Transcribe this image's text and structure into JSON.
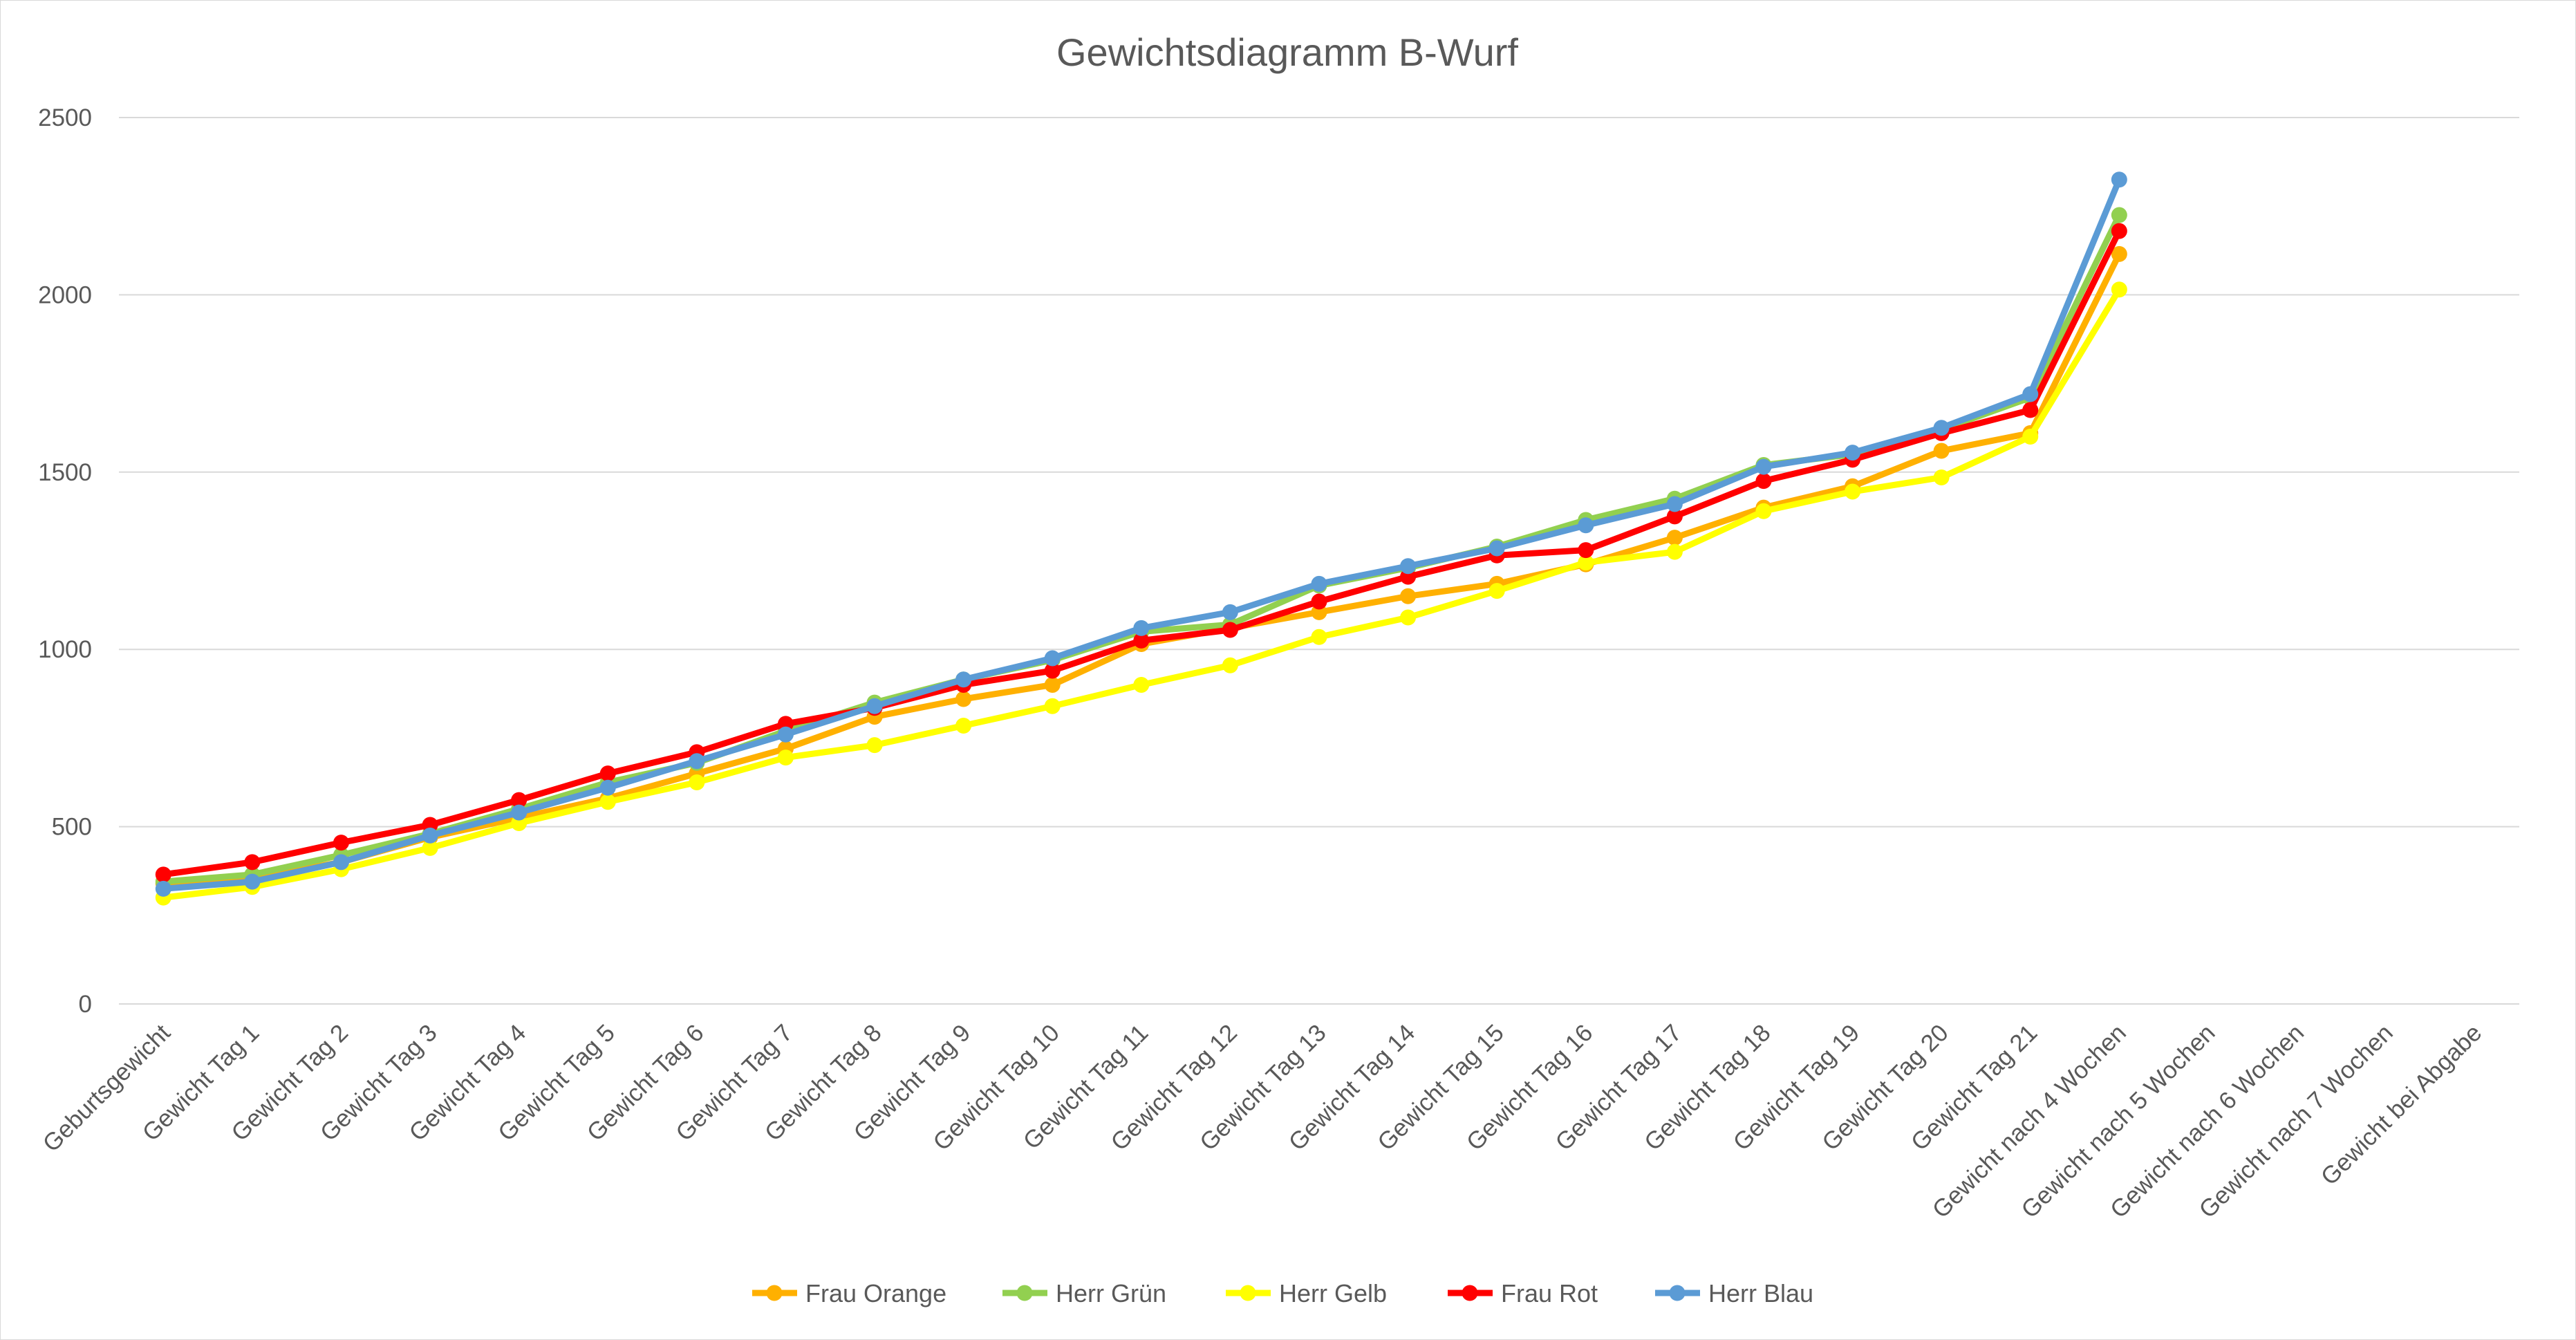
{
  "chart_data": {
    "type": "line",
    "title": "Gewichtsdiagramm B-Wurf",
    "xlabel": "",
    "ylabel": "",
    "ylim": [
      0,
      2500
    ],
    "yticks": [
      0,
      500,
      1000,
      1500,
      2000,
      2500
    ],
    "grid": true,
    "legend_position": "bottom",
    "categories": [
      "Geburtsgewicht",
      "Gewicht Tag 1",
      "Gewicht Tag 2",
      "Gewicht Tag 3",
      "Gewicht Tag 4",
      "Gewicht Tag 5",
      "Gewicht Tag 6",
      "Gewicht Tag 7",
      "Gewicht Tag 8",
      "Gewicht Tag 9",
      "Gewicht Tag 10",
      "Gewicht Tag 11",
      "Gewicht Tag 12",
      "Gewicht Tag 13",
      "Gewicht Tag 14",
      "Gewicht Tag 15",
      "Gewicht Tag 16",
      "Gewicht Tag 17",
      "Gewicht Tag 18",
      "Gewicht Tag 19",
      "Gewicht Tag 20",
      "Gewicht Tag 21",
      "Gewicht nach 4 Wochen",
      "Gewicht nach 5 Wochen",
      "Gewicht nach 6 Wochen",
      "Gewicht nach 7 Wochen",
      "Gewicht bei Abgabe"
    ],
    "series": [
      {
        "name": "Frau Orange",
        "color": "#FFB000",
        "values": [
          340,
          355,
          400,
          470,
          525,
          580,
          650,
          720,
          810,
          860,
          900,
          1015,
          1060,
          1105,
          1150,
          1185,
          1240,
          1315,
          1400,
          1460,
          1560,
          1610,
          2115,
          null,
          null,
          null,
          null
        ]
      },
      {
        "name": "Herr Grün",
        "color": "#92D050",
        "values": [
          345,
          365,
          420,
          480,
          550,
          625,
          680,
          770,
          850,
          915,
          970,
          1050,
          1070,
          1180,
          1230,
          1290,
          1365,
          1425,
          1520,
          1550,
          1620,
          1710,
          2225,
          null,
          null,
          null,
          null
        ]
      },
      {
        "name": "Herr Gelb",
        "color": "#FFFF00",
        "values": [
          300,
          330,
          380,
          440,
          510,
          570,
          625,
          695,
          730,
          785,
          840,
          900,
          955,
          1035,
          1090,
          1165,
          1245,
          1275,
          1390,
          1445,
          1485,
          1600,
          2015,
          null,
          null,
          null,
          null
        ]
      },
      {
        "name": "Frau Rot",
        "color": "#FF0000",
        "values": [
          365,
          400,
          455,
          505,
          575,
          650,
          710,
          790,
          835,
          900,
          940,
          1025,
          1055,
          1135,
          1205,
          1265,
          1280,
          1375,
          1475,
          1535,
          1610,
          1675,
          2180,
          null,
          null,
          null,
          null
        ]
      },
      {
        "name": "Herr Blau",
        "color": "#5B9BD5",
        "values": [
          325,
          345,
          400,
          475,
          540,
          610,
          685,
          760,
          840,
          915,
          975,
          1060,
          1105,
          1185,
          1235,
          1285,
          1350,
          1410,
          1515,
          1555,
          1625,
          1720,
          2325,
          null,
          null,
          null,
          null
        ]
      }
    ]
  }
}
